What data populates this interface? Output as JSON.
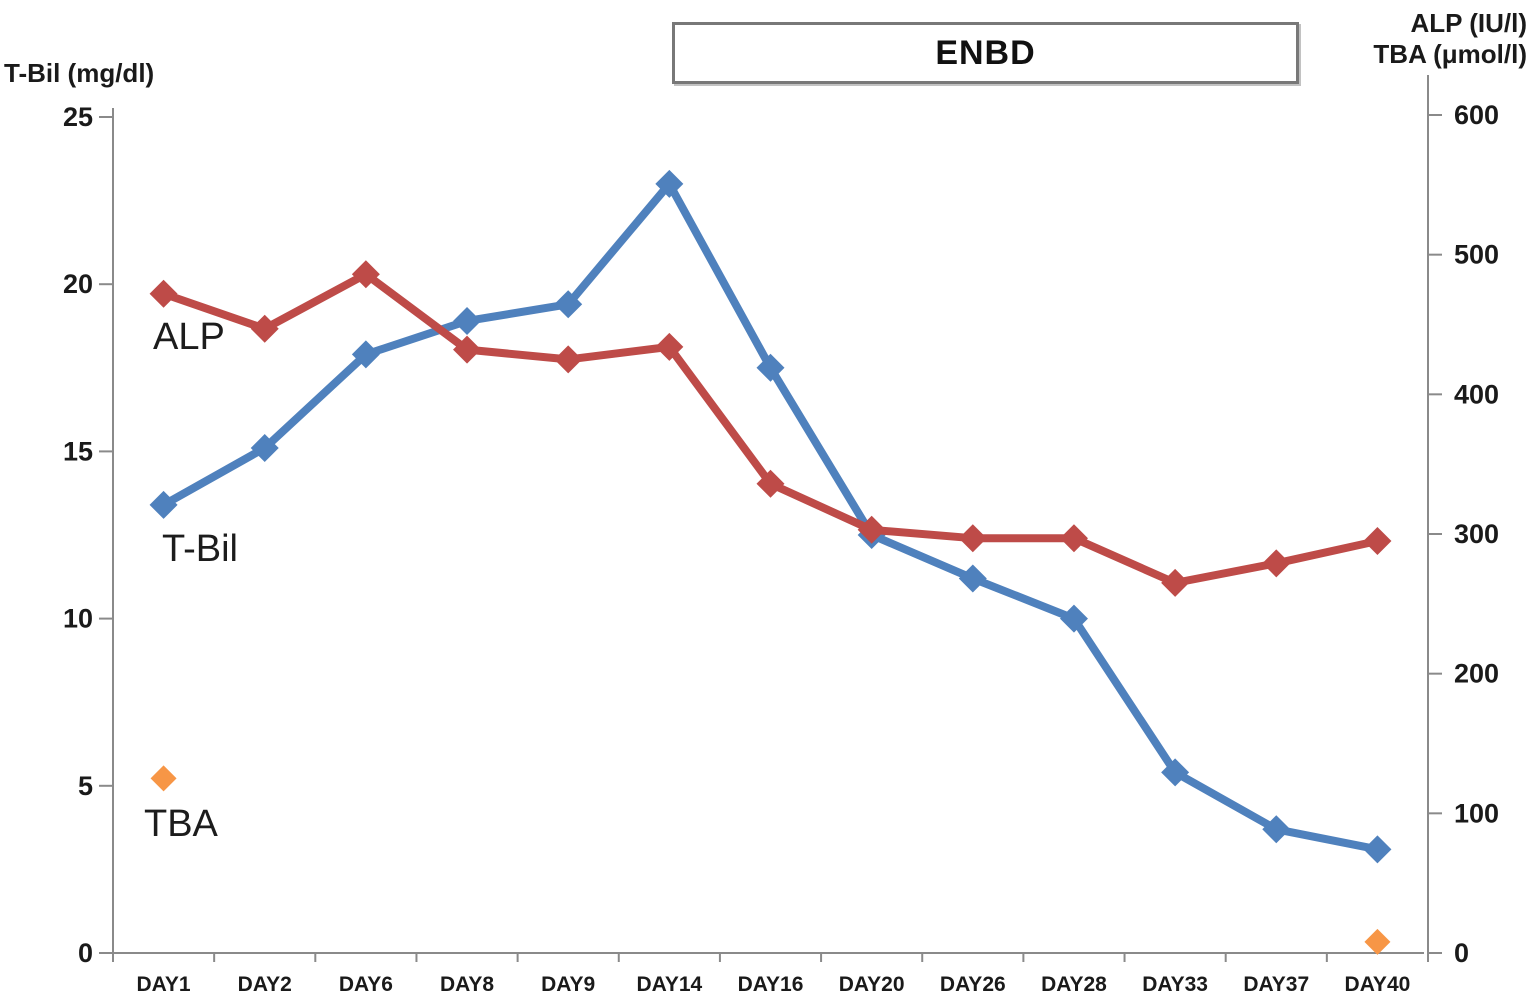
{
  "chart_data": {
    "type": "line",
    "title": "",
    "categories": [
      "DAY1",
      "DAY2",
      "DAY6",
      "DAY8",
      "DAY9",
      "DAY14",
      "DAY16",
      "DAY20",
      "DAY26",
      "DAY28",
      "DAY33",
      "DAY37",
      "DAY40"
    ],
    "left_axis": {
      "label": "T-Bil (mg/dl)",
      "ticks": [
        0,
        5,
        10,
        15,
        20,
        25
      ],
      "range": [
        0,
        25
      ]
    },
    "right_axis": {
      "label_line1": "ALP (IU/l)",
      "label_line2": "TBA (μmol/l)",
      "ticks": [
        0,
        100,
        200,
        300,
        400,
        500,
        600
      ],
      "range": [
        0,
        600
      ]
    },
    "series": [
      {
        "name": "T-Bil",
        "axis": "left",
        "color": "#4F81BD",
        "marker": "diamond",
        "line": true,
        "values": [
          13.4,
          15.1,
          17.9,
          18.9,
          19.4,
          23.0,
          17.5,
          12.5,
          11.2,
          10.0,
          5.4,
          3.7,
          3.1
        ]
      },
      {
        "name": "ALP",
        "axis": "right",
        "color": "#BE4B48",
        "marker": "diamond",
        "line": true,
        "values": [
          472,
          447,
          486,
          432,
          425,
          434,
          336,
          303,
          297,
          297,
          265,
          279,
          295
        ]
      },
      {
        "name": "TBA",
        "axis": "right",
        "color": "#F79646",
        "marker": "diamond",
        "line": false,
        "values": [
          125,
          null,
          null,
          null,
          null,
          null,
          null,
          null,
          null,
          null,
          null,
          null,
          8
        ]
      }
    ],
    "annotations": {
      "enbd": "ENBD",
      "alp_label": "ALP",
      "tbil_label": "T-Bil",
      "tba_label": "TBA"
    },
    "layout_hints": {
      "legend": "none",
      "grid": "off",
      "axis_color": "#8a8a8a",
      "text_color": "#1a1a1a"
    }
  }
}
